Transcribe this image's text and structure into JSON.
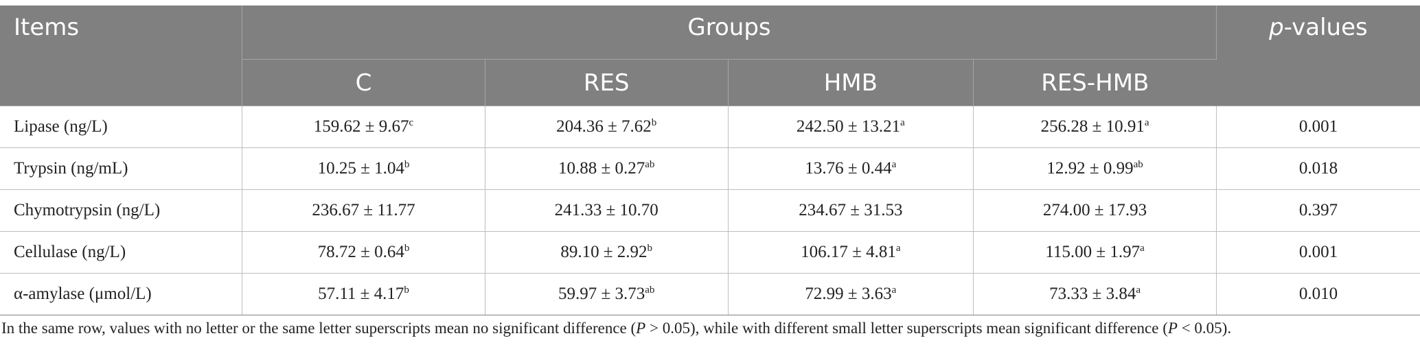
{
  "table": {
    "header": {
      "items_label": "Items",
      "groups_label": "Groups",
      "p_label_italic": "p",
      "p_label_rest": "-values",
      "groups": [
        "C",
        "RES",
        "HMB",
        "RES-HMB"
      ]
    },
    "rows": [
      {
        "item": "Lipase (ng/L)",
        "values": [
          {
            "v": "159.62 ± 9.67",
            "sup": "c"
          },
          {
            "v": "204.36 ± 7.62",
            "sup": "b"
          },
          {
            "v": "242.50 ± 13.21",
            "sup": "a"
          },
          {
            "v": "256.28 ± 10.91",
            "sup": "a"
          }
        ],
        "p": "0.001"
      },
      {
        "item": "Trypsin (ng/mL)",
        "values": [
          {
            "v": "10.25 ± 1.04",
            "sup": "b"
          },
          {
            "v": "10.88 ± 0.27",
            "sup": "ab"
          },
          {
            "v": "13.76 ± 0.44",
            "sup": "a"
          },
          {
            "v": "12.92 ± 0.99",
            "sup": "ab"
          }
        ],
        "p": "0.018"
      },
      {
        "item": "Chymotrypsin (ng/L)",
        "values": [
          {
            "v": "236.67 ± 11.77",
            "sup": ""
          },
          {
            "v": "241.33 ± 10.70",
            "sup": ""
          },
          {
            "v": "234.67 ± 31.53",
            "sup": ""
          },
          {
            "v": "274.00 ± 17.93",
            "sup": ""
          }
        ],
        "p": "0.397"
      },
      {
        "item": "Cellulase (ng/L)",
        "values": [
          {
            "v": "78.72 ± 0.64",
            "sup": "b"
          },
          {
            "v": "89.10 ± 2.92",
            "sup": "b"
          },
          {
            "v": "106.17 ± 4.81",
            "sup": "a"
          },
          {
            "v": "115.00 ± 1.97",
            "sup": "a"
          }
        ],
        "p": "0.001"
      },
      {
        "item": "α-amylase (μmol/L)",
        "values": [
          {
            "v": "57.11 ± 4.17",
            "sup": "b"
          },
          {
            "v": "59.97 ± 3.73",
            "sup": "ab"
          },
          {
            "v": "72.99 ± 3.63",
            "sup": "a"
          },
          {
            "v": "73.33 ± 3.84",
            "sup": "a"
          }
        ],
        "p": "0.010"
      }
    ]
  },
  "footnote": {
    "part1": "In the same row, values with no letter or the same letter superscripts mean no significant difference (",
    "p1_italic": "P",
    "part2": " > 0.05), while with different small letter superscripts mean significant difference (",
    "p2_italic": "P",
    "part3": " < 0.05)."
  }
}
